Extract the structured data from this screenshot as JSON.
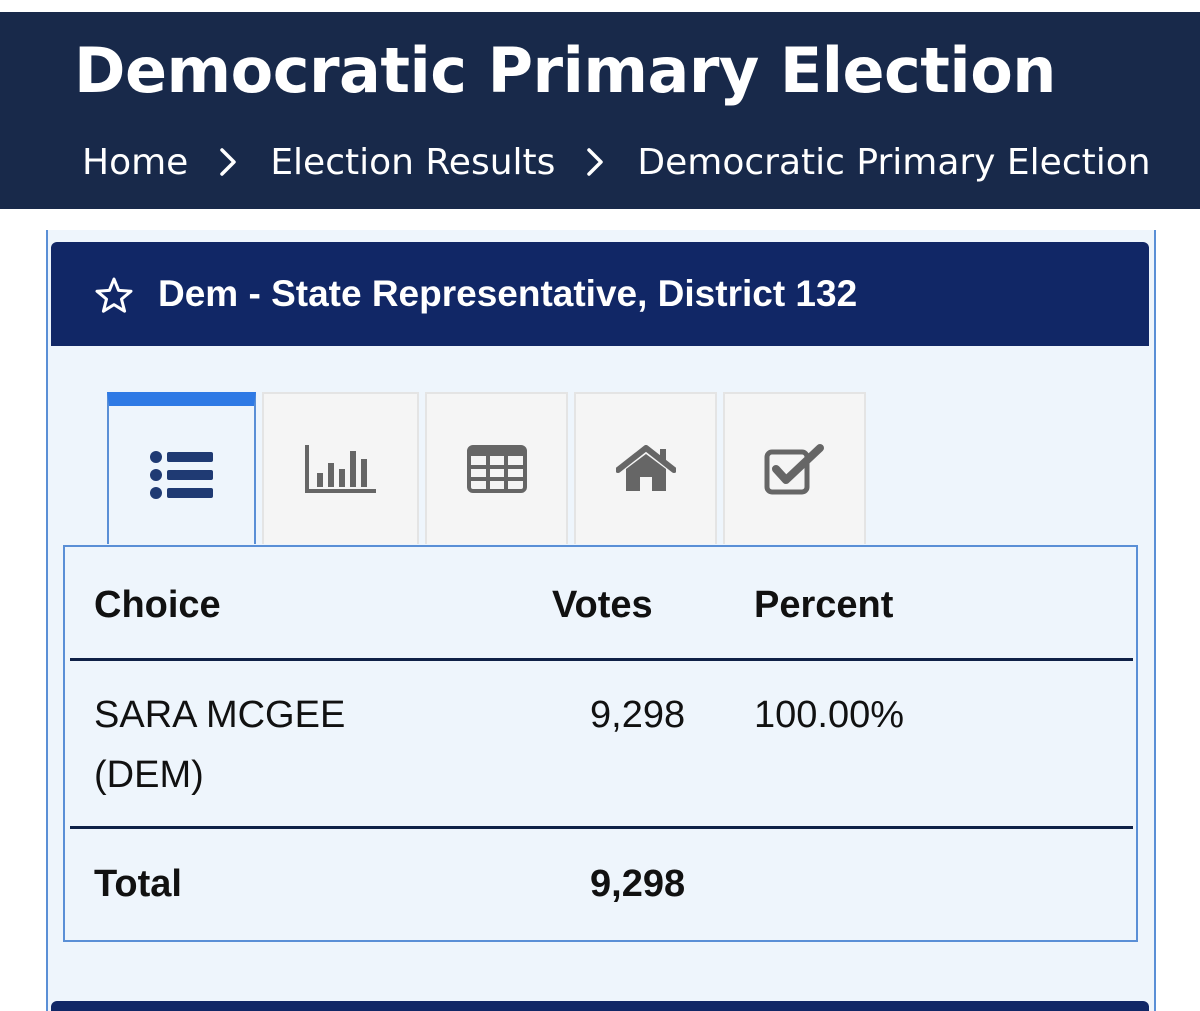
{
  "header": {
    "title": "Democratic Primary Election",
    "breadcrumb": [
      "Home",
      "Election Results",
      "Democratic Primary Election"
    ]
  },
  "race": {
    "title": "Dem - State Representative, District 132",
    "favorite_icon": "star-outline-icon"
  },
  "tabs": [
    {
      "icon": "list-icon",
      "active": true
    },
    {
      "icon": "bar-chart-icon",
      "active": false
    },
    {
      "icon": "table-grid-icon",
      "active": false
    },
    {
      "icon": "home-icon",
      "active": false
    },
    {
      "icon": "checkbox-icon",
      "active": false
    }
  ],
  "table": {
    "headers": {
      "choice": "Choice",
      "votes": "Votes",
      "percent": "Percent"
    },
    "rows": [
      {
        "choice_line1": "SARA MCGEE",
        "choice_line2": "(DEM)",
        "votes": "9,298",
        "percent": "100.00%"
      }
    ],
    "total": {
      "label": "Total",
      "votes": "9,298"
    }
  },
  "colors": {
    "header_bg": "#18294a",
    "card_header_bg": "#112766",
    "active_tab_accent": "#2f7ae5",
    "panel_bg": "#eef5fc",
    "border_blue": "#5a8fd6"
  }
}
